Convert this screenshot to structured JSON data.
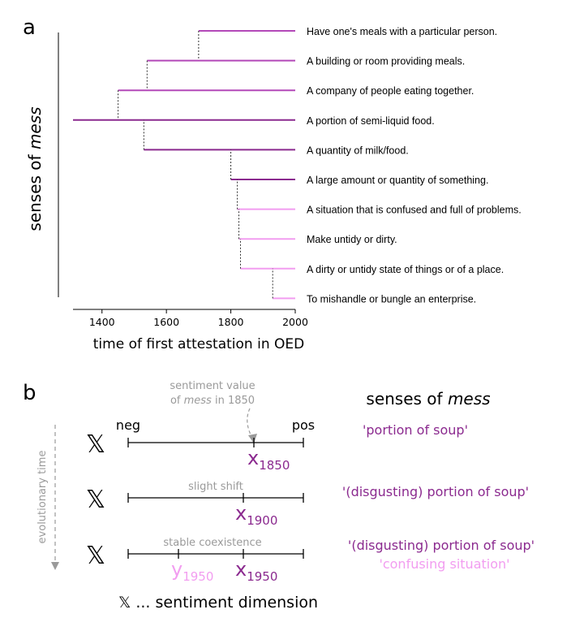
{
  "panel_a": {
    "label": "a",
    "ylabel_prefix": "senses of ",
    "ylabel_word": "mess",
    "xlabel": "time of first attestation in OED",
    "colors": {
      "dark": "#8b2a8f",
      "mid": "#b348b8",
      "light": "#f29df0"
    },
    "chart_data": {
      "type": "dendrogram",
      "x_ticks": [
        "1400",
        "1600",
        "1800",
        "2000"
      ],
      "xlim": [
        1310,
        2000
      ],
      "senses": [
        {
          "label": "Have one's meals with a particular person.",
          "year": 1700,
          "color": "#b348b8"
        },
        {
          "label": "A building or room providing meals.",
          "year": 1540,
          "color": "#b348b8"
        },
        {
          "label": "A company of people eating together.",
          "year": 1450,
          "color": "#b348b8"
        },
        {
          "label": "A portion of semi-liquid food.",
          "year": 1310,
          "color": "#8b2a8f"
        },
        {
          "label": "A quantity of milk/food.",
          "year": 1530,
          "color": "#8b2a8f"
        },
        {
          "label": "A large amount or quantity of something.",
          "year": 1800,
          "color": "#8b2a8f"
        },
        {
          "label": "A situation that is confused and full of problems.",
          "year": 1820,
          "color": "#f29df0"
        },
        {
          "label": "Make untidy or dirty.",
          "year": 1825,
          "color": "#f29df0"
        },
        {
          "label": "A dirty or untidy state of things or of a place.",
          "year": 1830,
          "color": "#f29df0"
        },
        {
          "label": "To mishandle or bungle an enterprise.",
          "year": 1930,
          "color": "#f29df0"
        }
      ]
    }
  },
  "panel_b": {
    "label": "b",
    "title_prefix": "senses of ",
    "title_word": "mess",
    "axis_neg": "neg",
    "axis_pos": "pos",
    "time_label": "evolutionary time",
    "callout_line1": "sentiment value",
    "callout_line2_prefix": "of ",
    "callout_line2_word": "mess",
    "callout_line2_suffix": " in 1850",
    "dimension_symbol": "𝕏",
    "legend_text": " ... sentiment dimension",
    "rows": [
      {
        "note": "",
        "markers": [
          {
            "letter": "x",
            "sub": "1850",
            "color": "#8b2a8f"
          }
        ],
        "senses": [
          {
            "text": "'portion of soup'",
            "color": "#8b2a8f"
          }
        ]
      },
      {
        "note": "slight shift",
        "markers": [
          {
            "letter": "x",
            "sub": "1900",
            "color": "#8b2a8f"
          }
        ],
        "senses": [
          {
            "text": "'(disgusting) portion of soup'",
            "color": "#8b2a8f"
          }
        ]
      },
      {
        "note": "stable coexistence",
        "markers": [
          {
            "letter": "y",
            "sub": "1950",
            "color": "#f29df0"
          },
          {
            "letter": "x",
            "sub": "1950",
            "color": "#8b2a8f"
          }
        ],
        "senses": [
          {
            "text": "'(disgusting) portion of soup'",
            "color": "#8b2a8f"
          },
          {
            "text": "'confusing situation'",
            "color": "#f29df0"
          }
        ]
      }
    ]
  }
}
